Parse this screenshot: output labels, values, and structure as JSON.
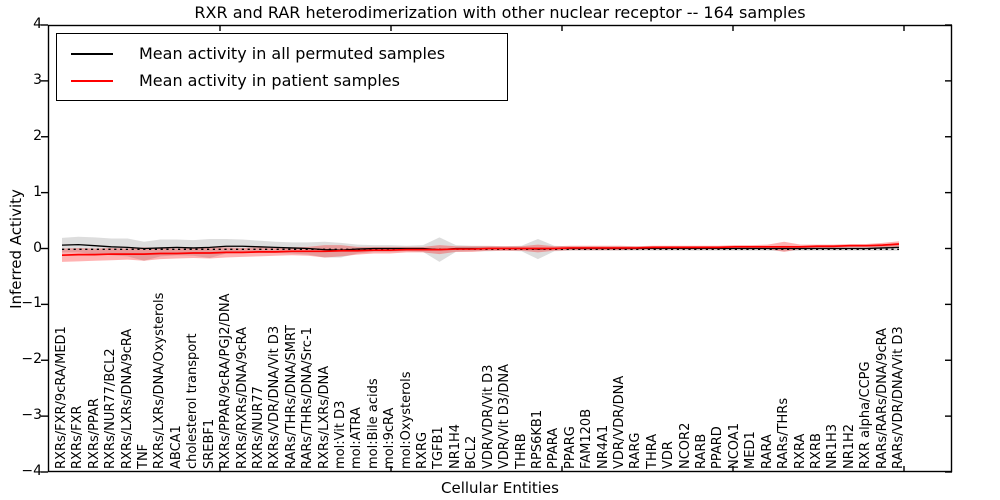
{
  "figure": {
    "title": "RXR and RAR heterodimerization with other nuclear receptor -- 164 samples",
    "xlabel": "Cellular Entities",
    "ylabel": "Inferred Activity"
  },
  "legend": {
    "items": [
      {
        "label": "Mean activity in all permuted samples",
        "color": "#000000"
      },
      {
        "label": "Mean activity in patient samples",
        "color": "#ff0000"
      }
    ]
  },
  "chart_data": {
    "type": "line",
    "title": "RXR and RAR heterodimerization with other nuclear receptor -- 164 samples",
    "xlabel": "Cellular Entities",
    "ylabel": "Inferred Activity",
    "ylim": [
      -4,
      4
    ],
    "yticks": [
      4,
      3,
      2,
      1,
      0,
      -1,
      -2,
      -3,
      -4
    ],
    "grid": false,
    "legend_position": "upper left",
    "categories": [
      "RXRs/FXR/9cRA/MED1",
      "RXRs/FXR",
      "RXRs/PPAR",
      "RXRs/NUR77/BCL2",
      "RXRs/LXRs/DNA/9cRA",
      "TNF",
      "RXRs/LXRs/DNA/Oxysterols",
      "ABCA1",
      "cholesterol transport",
      "SREBF1",
      "RXRs/PPAR/9cRA/PGJ2/DNA",
      "RXRs/RXRs/DNA/9cRA",
      "RXRs/NUR77",
      "RXRs/VDR/DNA/Vit D3",
      "RARs/THRs/DNA/SMRT",
      "RARs/THRs/DNA/Src-1",
      "RXRs/LXRs/DNA",
      "mol:Vit D3",
      "mol:ATRA",
      "mol:Bile acids",
      "mol:9cRA",
      "mol:Oxysterols",
      "RXRG",
      "TGFB1",
      "NR1H4",
      "BCL2",
      "VDR/VDR/Vit D3",
      "VDR/Vit D3/DNA",
      "THRB",
      "RPS6KB1",
      "PPARA",
      "PPARG",
      "FAM120B",
      "NR4A1",
      "VDR/VDR/DNA",
      "RARG",
      "THRA",
      "VDR",
      "NCOR2",
      "RARB",
      "PPARD",
      "NCOA1",
      "MED1",
      "RARA",
      "RARs/THRs",
      "RXRA",
      "RXRB",
      "NR1H3",
      "NR1H2",
      "RXR alpha/CCPG",
      "RARs/RARs/DNA/9cRA",
      "RARs/VDR/DNA/Vit D3"
    ],
    "series": [
      {
        "name": "Mean activity in all permuted samples",
        "color": "#000000",
        "style": "solid",
        "values": [
          0.06,
          0.07,
          0.05,
          0.03,
          0.02,
          0.0,
          0.01,
          0.02,
          0.01,
          0.02,
          0.04,
          0.04,
          0.03,
          0.02,
          0.01,
          0.0,
          -0.02,
          -0.03,
          -0.01,
          0.0,
          0.0,
          0.0,
          0.0,
          -0.02,
          0.0,
          0.0,
          0.0,
          0.0,
          0.0,
          -0.01,
          0.0,
          0.0,
          0.0,
          0.0,
          0.0,
          0.0,
          0.0,
          0.0,
          0.0,
          0.0,
          0.0,
          0.0,
          0.0,
          0.0,
          0.0,
          0.0,
          0.0,
          0.0,
          0.0,
          0.0,
          0.01,
          0.02
        ]
      },
      {
        "name": "Mean activity in patient samples",
        "color": "#ff0000",
        "style": "solid",
        "values": [
          -0.12,
          -0.11,
          -0.11,
          -0.1,
          -0.1,
          -0.1,
          -0.09,
          -0.09,
          -0.08,
          -0.08,
          -0.07,
          -0.07,
          -0.06,
          -0.06,
          -0.05,
          -0.05,
          -0.05,
          -0.04,
          -0.04,
          -0.03,
          -0.03,
          -0.02,
          -0.02,
          -0.02,
          -0.01,
          -0.01,
          0.0,
          0.0,
          0.0,
          0.0,
          0.0,
          0.01,
          0.01,
          0.01,
          0.01,
          0.01,
          0.02,
          0.02,
          0.02,
          0.02,
          0.02,
          0.03,
          0.03,
          0.03,
          0.03,
          0.03,
          0.04,
          0.04,
          0.05,
          0.05,
          0.06,
          0.08
        ]
      }
    ],
    "bands": [
      {
        "name": "permuted-samples-range",
        "color": "#aaaaaa",
        "opacity": 0.4,
        "upper": [
          0.19,
          0.21,
          0.2,
          0.18,
          0.18,
          0.12,
          0.16,
          0.16,
          0.15,
          0.17,
          0.17,
          0.16,
          0.14,
          0.12,
          0.11,
          0.11,
          0.12,
          0.1,
          0.07,
          0.06,
          0.06,
          0.05,
          0.06,
          0.2,
          0.06,
          0.05,
          0.05,
          0.04,
          0.05,
          0.17,
          0.05,
          0.04,
          0.04,
          0.04,
          0.04,
          0.04,
          0.04,
          0.04,
          0.04,
          0.04,
          0.04,
          0.04,
          0.04,
          0.04,
          0.05,
          0.04,
          0.04,
          0.04,
          0.04,
          0.04,
          0.06,
          0.08
        ],
        "lower": [
          -0.07,
          -0.07,
          -0.1,
          -0.12,
          -0.14,
          -0.22,
          -0.14,
          -0.12,
          -0.13,
          -0.17,
          -0.09,
          -0.08,
          -0.08,
          -0.08,
          -0.09,
          -0.11,
          -0.16,
          -0.16,
          -0.09,
          -0.06,
          -0.06,
          -0.05,
          -0.06,
          -0.24,
          -0.06,
          -0.05,
          -0.05,
          -0.04,
          -0.05,
          -0.19,
          -0.05,
          -0.04,
          -0.04,
          -0.04,
          -0.04,
          -0.04,
          -0.04,
          -0.04,
          -0.04,
          -0.04,
          -0.04,
          -0.04,
          -0.04,
          -0.04,
          -0.05,
          -0.04,
          -0.04,
          -0.04,
          -0.04,
          -0.04,
          -0.04,
          -0.04
        ]
      },
      {
        "name": "patient-samples-range",
        "color": "#ff0000",
        "opacity": 0.3,
        "upper": [
          0.0,
          0.01,
          0.0,
          0.01,
          0.0,
          0.02,
          0.01,
          0.0,
          0.01,
          0.02,
          0.02,
          0.01,
          0.02,
          0.01,
          0.02,
          0.03,
          0.06,
          0.06,
          0.03,
          0.03,
          0.03,
          0.03,
          0.03,
          0.06,
          0.04,
          0.04,
          0.04,
          0.04,
          0.04,
          0.07,
          0.04,
          0.05,
          0.05,
          0.05,
          0.05,
          0.04,
          0.05,
          0.05,
          0.05,
          0.05,
          0.05,
          0.06,
          0.06,
          0.07,
          0.12,
          0.07,
          0.07,
          0.07,
          0.08,
          0.08,
          0.1,
          0.13
        ],
        "lower": [
          -0.24,
          -0.23,
          -0.22,
          -0.21,
          -0.2,
          -0.22,
          -0.19,
          -0.18,
          -0.17,
          -0.18,
          -0.16,
          -0.15,
          -0.14,
          -0.13,
          -0.12,
          -0.13,
          -0.16,
          -0.14,
          -0.11,
          -0.09,
          -0.09,
          -0.07,
          -0.07,
          -0.1,
          -0.06,
          -0.06,
          -0.04,
          -0.04,
          -0.04,
          -0.07,
          -0.04,
          -0.03,
          -0.03,
          -0.03,
          -0.03,
          -0.02,
          -0.01,
          -0.01,
          -0.01,
          -0.01,
          -0.01,
          0.0,
          0.0,
          -0.01,
          -0.06,
          -0.01,
          0.01,
          0.01,
          0.02,
          0.02,
          0.02,
          0.03
        ]
      }
    ],
    "zero_line": {
      "style": "dashed",
      "color": "#000000",
      "value": -0.015
    }
  }
}
